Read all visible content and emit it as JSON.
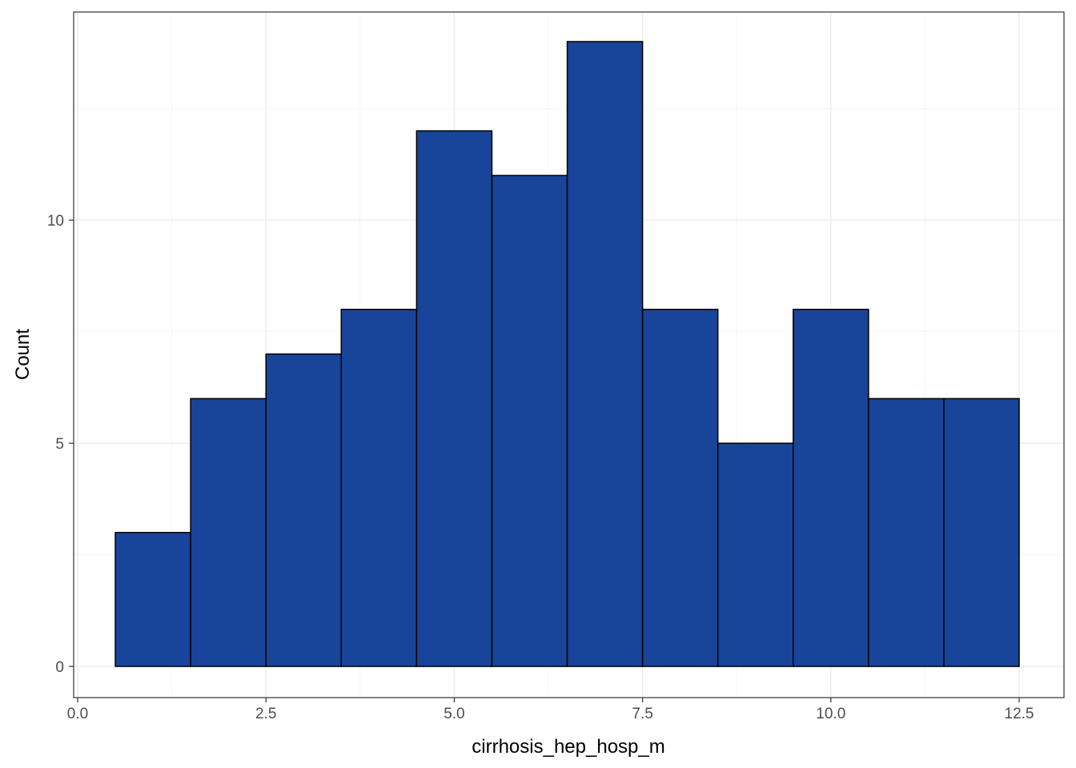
{
  "chart_data": {
    "type": "bar",
    "subtype": "histogram",
    "title": "",
    "xlabel": "cirrhosis_hep_hosp_m",
    "ylabel": "Count",
    "xlim": [
      0,
      12.5
    ],
    "ylim": [
      0,
      14
    ],
    "x_ticks": [
      {
        "value": 0.0,
        "label": "0.0"
      },
      {
        "value": 2.5,
        "label": "2.5"
      },
      {
        "value": 5.0,
        "label": "5.0"
      },
      {
        "value": 7.5,
        "label": "7.5"
      },
      {
        "value": 10.0,
        "label": "10.0"
      },
      {
        "value": 12.5,
        "label": "12.5"
      }
    ],
    "y_ticks": [
      {
        "value": 0,
        "label": "0"
      },
      {
        "value": 5,
        "label": "5"
      },
      {
        "value": 10,
        "label": "10"
      }
    ],
    "bins": [
      {
        "start": 0.5,
        "end": 1.5,
        "count": 3
      },
      {
        "start": 1.5,
        "end": 2.5,
        "count": 6
      },
      {
        "start": 2.5,
        "end": 3.5,
        "count": 7
      },
      {
        "start": 3.5,
        "end": 4.5,
        "count": 8
      },
      {
        "start": 4.5,
        "end": 5.5,
        "count": 12
      },
      {
        "start": 5.5,
        "end": 6.5,
        "count": 11
      },
      {
        "start": 6.5,
        "end": 7.5,
        "count": 14
      },
      {
        "start": 7.5,
        "end": 8.5,
        "count": 8
      },
      {
        "start": 8.5,
        "end": 9.5,
        "count": 5
      },
      {
        "start": 9.5,
        "end": 10.5,
        "count": 8
      },
      {
        "start": 10.5,
        "end": 11.5,
        "count": 6
      },
      {
        "start": 11.5,
        "end": 12.5,
        "count": 6
      }
    ],
    "grid": true,
    "colors": {
      "bar_fill": "#184499",
      "bar_stroke": "#000000",
      "panel_border": "#333333",
      "grid_major": "#ebebeb",
      "grid_minor": "#f4f4f4",
      "tick_text": "#4d4d4d"
    }
  }
}
